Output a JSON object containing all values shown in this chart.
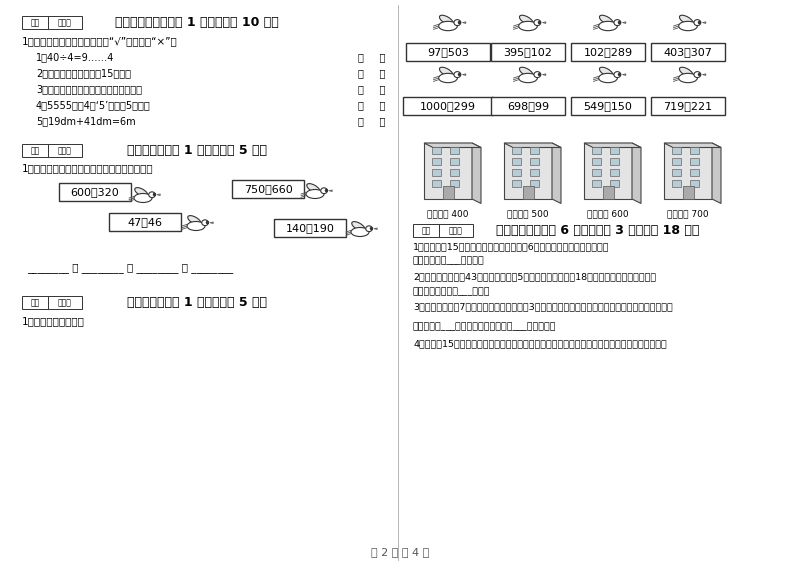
{
  "bg_color": "#ffffff",
  "page_footer": "第 2 页 共 4 页",
  "sec5_title": "五、判断对与错（共 1 大题，共计 10 分）",
  "sec5_intro": "1、火眼金睛，我会判：对的画“√”，错的画“×”。",
  "sec5_items": [
    "1．40÷4=9……4",
    "2、欢欢晚上做作业用了15小时。",
    "3、长方形和正方形的四个角都是直角。",
    "4、5555中的4个‘5’都表示5个一。",
    "5、19dm+41dm=6m"
  ],
  "sec6_title": "六、比一比（共 1 大题，共计 5 分）",
  "sec6_intro": "1、把下列算式按得数大小，从小到大排一行。",
  "sec6_exprs": [
    "600－320",
    "750－660",
    "47＋46",
    "140＋190"
  ],
  "sec7_title": "七、连一连（共 1 大题，共计 5 分）",
  "sec7_intro": "1、估一估，连一连。",
  "right_row1": [
    "97＋503",
    "395＋102",
    "102＋289",
    "403＋307"
  ],
  "right_row2": [
    "1000－299",
    "698－99",
    "549－150",
    "719－221"
  ],
  "building_labels": [
    "得数接近 400",
    "得数大约 500",
    "得数接近 600",
    "得数大约 700"
  ],
  "sec8_title": "八、解决问题（共 6 小题，每题 3 分，共计 18 分）",
  "sec8_items": [
    "1、妈妈买了15个苹果，买的橘子比苹果少6个，问一共买了多少个水果？",
    "答：一共买了___个水果。",
    "2、学校里原来种了43棵树，今年死了5棵，植树节时又种了18棵，现在学校里有几棵树？",
    "答：现在学校里有___棵树。",
    "3、小明有故事书7本，小丽的故事书是他的3倍，小丽有多少本故事书？他们一共有多少本故事书？",
    "答：小丽有___本故事书，她们一共有___本故事书。",
    "4、小红有15元钱，如果只买小盒牛奶，可以买多少盒？如果只买大盒牛奶，最多可以买多少盒？"
  ]
}
